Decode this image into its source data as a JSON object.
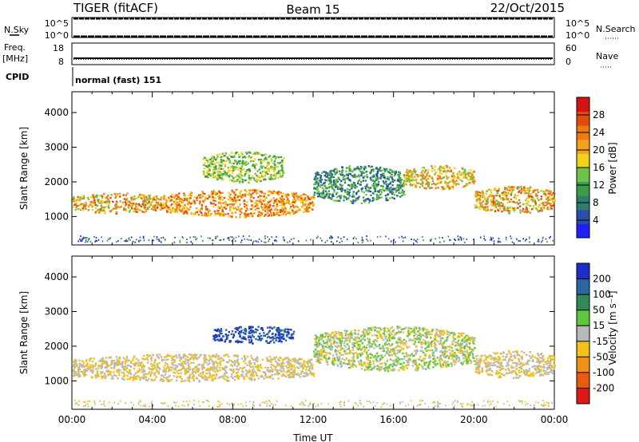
{
  "header": {
    "radar": "TIGER (fitACF)",
    "beam": "Beam 15",
    "date": "22/Oct/2015"
  },
  "strips": {
    "nsky_label": "N.Sky",
    "nsky_ticks": [
      "10^5",
      "10^0"
    ],
    "nsearch_label": "N.Search",
    "nsearch_ticks": [
      "10^5",
      "10^0"
    ],
    "freq_label": "Freq.",
    "freq_unit": "[MHz]",
    "freq_ticks": [
      "18",
      "8"
    ],
    "nave_label": "Nave",
    "nave_ticks": [
      "60",
      "0"
    ],
    "cpid_label": "CPID",
    "cpid_value": "normal (fast) 151"
  },
  "chart_data": [
    {
      "type": "heatmap",
      "name": "power",
      "xlabel": "",
      "ylabel": "Slant Range [km]",
      "xlim": [
        0,
        24
      ],
      "ylim": [
        180,
        4600
      ],
      "yticks": [
        1000,
        2000,
        3000,
        4000
      ],
      "colorbar": {
        "label": "Power [dB]",
        "ticks": [
          "4",
          "8",
          "12",
          "16",
          "20",
          "24",
          "28"
        ],
        "colors": [
          "#1f1fff",
          "#2a4fa8",
          "#2e7d6e",
          "#3d9a4a",
          "#6cc24a",
          "#f1d21b",
          "#f0a21a",
          "#f07a10",
          "#e44a0e",
          "#d41414"
        ]
      },
      "echo_bands": [
        {
          "x": [
            0,
            4.5
          ],
          "y": [
            1100,
            1700
          ],
          "level": "16-28"
        },
        {
          "x": [
            4.5,
            12
          ],
          "y": [
            1000,
            1800
          ],
          "level": "20-28"
        },
        {
          "x": [
            12,
            16.5
          ],
          "y": [
            1400,
            2500
          ],
          "level": "8-16"
        },
        {
          "x": [
            16.5,
            20
          ],
          "y": [
            1800,
            2500
          ],
          "level": "16-24"
        },
        {
          "x": [
            20,
            24
          ],
          "y": [
            1100,
            1900
          ],
          "level": "16-28"
        },
        {
          "x": [
            6.5,
            10.5
          ],
          "y": [
            2000,
            2900
          ],
          "level": "12-20"
        }
      ]
    },
    {
      "type": "heatmap",
      "name": "velocity",
      "xlabel": "Time UT",
      "ylabel": "Slant Range [km]",
      "xlim": [
        0,
        24
      ],
      "ylim": [
        180,
        4600
      ],
      "xticks": [
        "00:00",
        "04:00",
        "08:00",
        "12:00",
        "16:00",
        "20:00",
        "00:00"
      ],
      "yticks": [
        1000,
        2000,
        3000,
        4000
      ],
      "colorbar": {
        "label": "Velocity [m s⁻¹]",
        "ticks": [
          "200",
          "100",
          "50",
          "15",
          "-15",
          "-50",
          "-100",
          "-200"
        ],
        "colors": [
          "#1e2fc8",
          "#2b66a0",
          "#2f8a55",
          "#5cc83c",
          "#b9b9b9",
          "#f2c218",
          "#f0901a",
          "#ea5a10",
          "#e01818"
        ]
      },
      "echo_bands": [
        {
          "x": [
            0,
            12
          ],
          "y": [
            1000,
            1800
          ],
          "level": "-15..15"
        },
        {
          "x": [
            7,
            11
          ],
          "y": [
            2100,
            2600
          ],
          "level": "100..200"
        },
        {
          "x": [
            12,
            20
          ],
          "y": [
            1300,
            2600
          ],
          "level": "-15..50"
        },
        {
          "x": [
            20,
            24
          ],
          "y": [
            1100,
            1900
          ],
          "level": "-15..15"
        }
      ]
    }
  ]
}
